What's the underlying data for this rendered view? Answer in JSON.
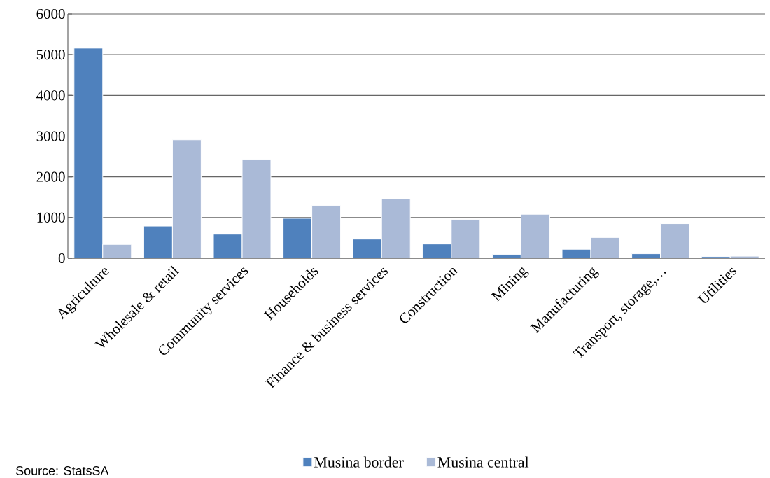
{
  "chart_data": {
    "type": "bar",
    "categories": [
      "Agriculture",
      "Wholesale & retail",
      "Community services",
      "Households",
      "Finance & business services",
      "Construction",
      "Mining",
      "Manufacturing",
      "Transport, storage,…",
      "Utilities"
    ],
    "series": [
      {
        "name": "Musina border",
        "color": "#4f81bd",
        "values": [
          5160,
          790,
          590,
          980,
          470,
          350,
          90,
          220,
          110,
          40
        ]
      },
      {
        "name": "Musina central",
        "color": "#aabad7",
        "values": [
          340,
          2910,
          2430,
          1300,
          1460,
          950,
          1080,
          510,
          850,
          50
        ]
      }
    ],
    "ylim": [
      0,
      6000
    ],
    "yticks": [
      0,
      1000,
      2000,
      3000,
      4000,
      5000,
      6000
    ],
    "grid": "y",
    "legend": "bottom",
    "annotations": [
      "Source: StatsSA"
    ]
  }
}
